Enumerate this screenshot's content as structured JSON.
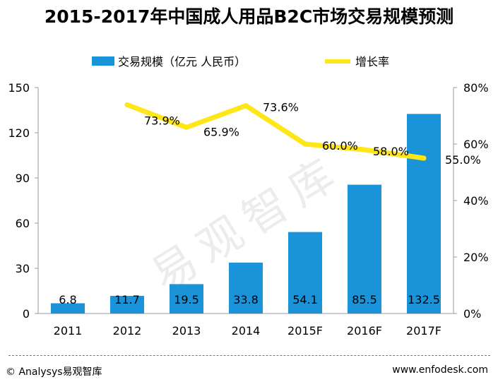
{
  "chart_data": {
    "type": "bar",
    "title": "2015-2017年中国成人用品B2C市场交易规模预测",
    "categories": [
      "2011",
      "2012",
      "2013",
      "2014",
      "2015F",
      "2016F",
      "2017F"
    ],
    "series": [
      {
        "name": "交易规模（亿元 人民币）",
        "type": "bar",
        "axis": "left",
        "color": "#1a93d9",
        "values": [
          6.8,
          11.7,
          19.5,
          33.8,
          54.1,
          85.5,
          132.5
        ],
        "labels": [
          "6.8",
          "11.7",
          "19.5",
          "33.8",
          "54.1",
          "85.5",
          "132.5"
        ]
      },
      {
        "name": "增长率",
        "type": "line",
        "axis": "right",
        "color": "#ffe619",
        "values": [
          null,
          73.9,
          65.9,
          73.6,
          60.0,
          58.0,
          55.0
        ],
        "labels": [
          "",
          "73.9%",
          "65.9%",
          "73.6%",
          "60.0%",
          "58.0%",
          "55.0%"
        ]
      }
    ],
    "y_left": {
      "min": 0,
      "max": 150,
      "ticks": [
        "0",
        "30",
        "60",
        "90",
        "120",
        "150"
      ]
    },
    "y_right": {
      "min": 0,
      "max": 80,
      "ticks": [
        "0%",
        "20%",
        "40%",
        "60%",
        "80%"
      ]
    },
    "grid": false,
    "legend": "top-center"
  },
  "watermark": "易观智库",
  "footer": {
    "source": "© Analysys易观智库",
    "website": "www.enfodesk.com"
  }
}
